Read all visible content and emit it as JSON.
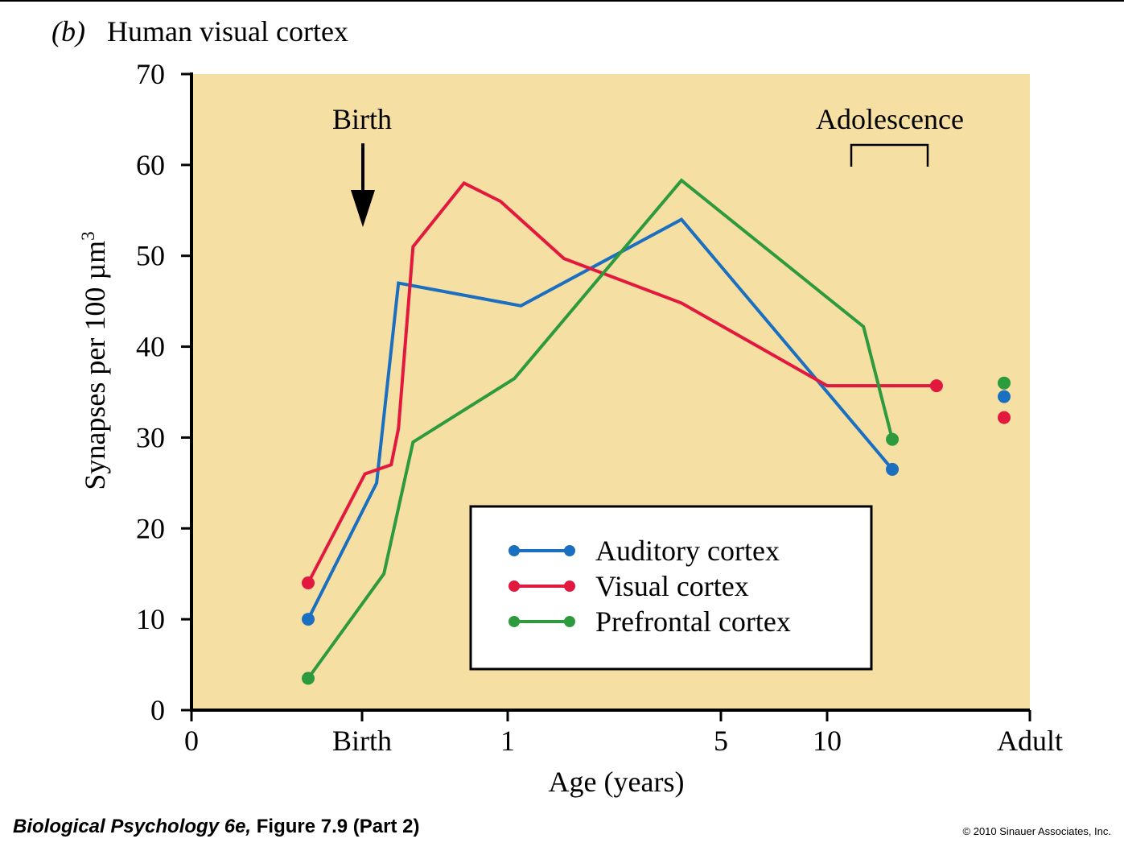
{
  "chart_data": {
    "type": "line",
    "panel_label": "b",
    "title": "Human visual cortex",
    "xlabel": "Age (years)",
    "ylabel": "Synapses per 100 µm",
    "ylabel_superscript": "3",
    "ylim": [
      0,
      70
    ],
    "yticks": [
      "0",
      "10",
      "20",
      "30",
      "40",
      "50",
      "60",
      "70"
    ],
    "xticks": [
      "0",
      "Birth",
      "1",
      "5",
      "10",
      "Adult"
    ],
    "x_scale": "nonlinear (prenatal, log-years, adult)",
    "background_color": "#F5DFA3",
    "legend_position": "bottom-center",
    "annotations": {
      "birth": "Birth",
      "adolescence": "Adolescence"
    },
    "series": [
      {
        "name": "Auditory cortex",
        "color": "#1B6FC0",
        "points": [
          {
            "x": "prenatal",
            "y": 10
          },
          {
            "x": "0.1",
            "y": 25
          },
          {
            "x": "0.25",
            "y": 47
          },
          {
            "x": "1.1",
            "y": 44.5
          },
          {
            "x": "3.5",
            "y": 54
          },
          {
            "x": "16",
            "y": 26.5
          }
        ],
        "adult": 34.5
      },
      {
        "name": "Visual cortex",
        "color": "#E3183E",
        "points": [
          {
            "x": "prenatal",
            "y": 14
          },
          {
            "x": "0.02",
            "y": 26
          },
          {
            "x": "0.2",
            "y": 27
          },
          {
            "x": "0.25",
            "y": 31
          },
          {
            "x": "0.35",
            "y": 51
          },
          {
            "x": "0.7",
            "y": 58
          },
          {
            "x": "0.95",
            "y": 56
          },
          {
            "x": "1.5",
            "y": 49.7
          },
          {
            "x": "3.5",
            "y": 44.8
          },
          {
            "x": "10",
            "y": 35.7
          },
          {
            "x": "22",
            "y": 35.7
          }
        ],
        "adult": 32.2
      },
      {
        "name": "Prefrontal cortex",
        "color": "#2E9A3E",
        "points": [
          {
            "x": "prenatal",
            "y": 3.5
          },
          {
            "x": "0.15",
            "y": 15
          },
          {
            "x": "0.35",
            "y": 29.5
          },
          {
            "x": "1.05",
            "y": 36.5
          },
          {
            "x": "3.5",
            "y": 58.3
          },
          {
            "x": "13",
            "y": 42.2
          },
          {
            "x": "16",
            "y": 29.8
          }
        ],
        "adult": 36
      }
    ]
  },
  "footer": {
    "caption_book": "Biological Psychology 6e,",
    "caption_figure": " Figure 7.9 (Part 2)",
    "copyright": "© 2010 Sinauer Associates, Inc."
  }
}
